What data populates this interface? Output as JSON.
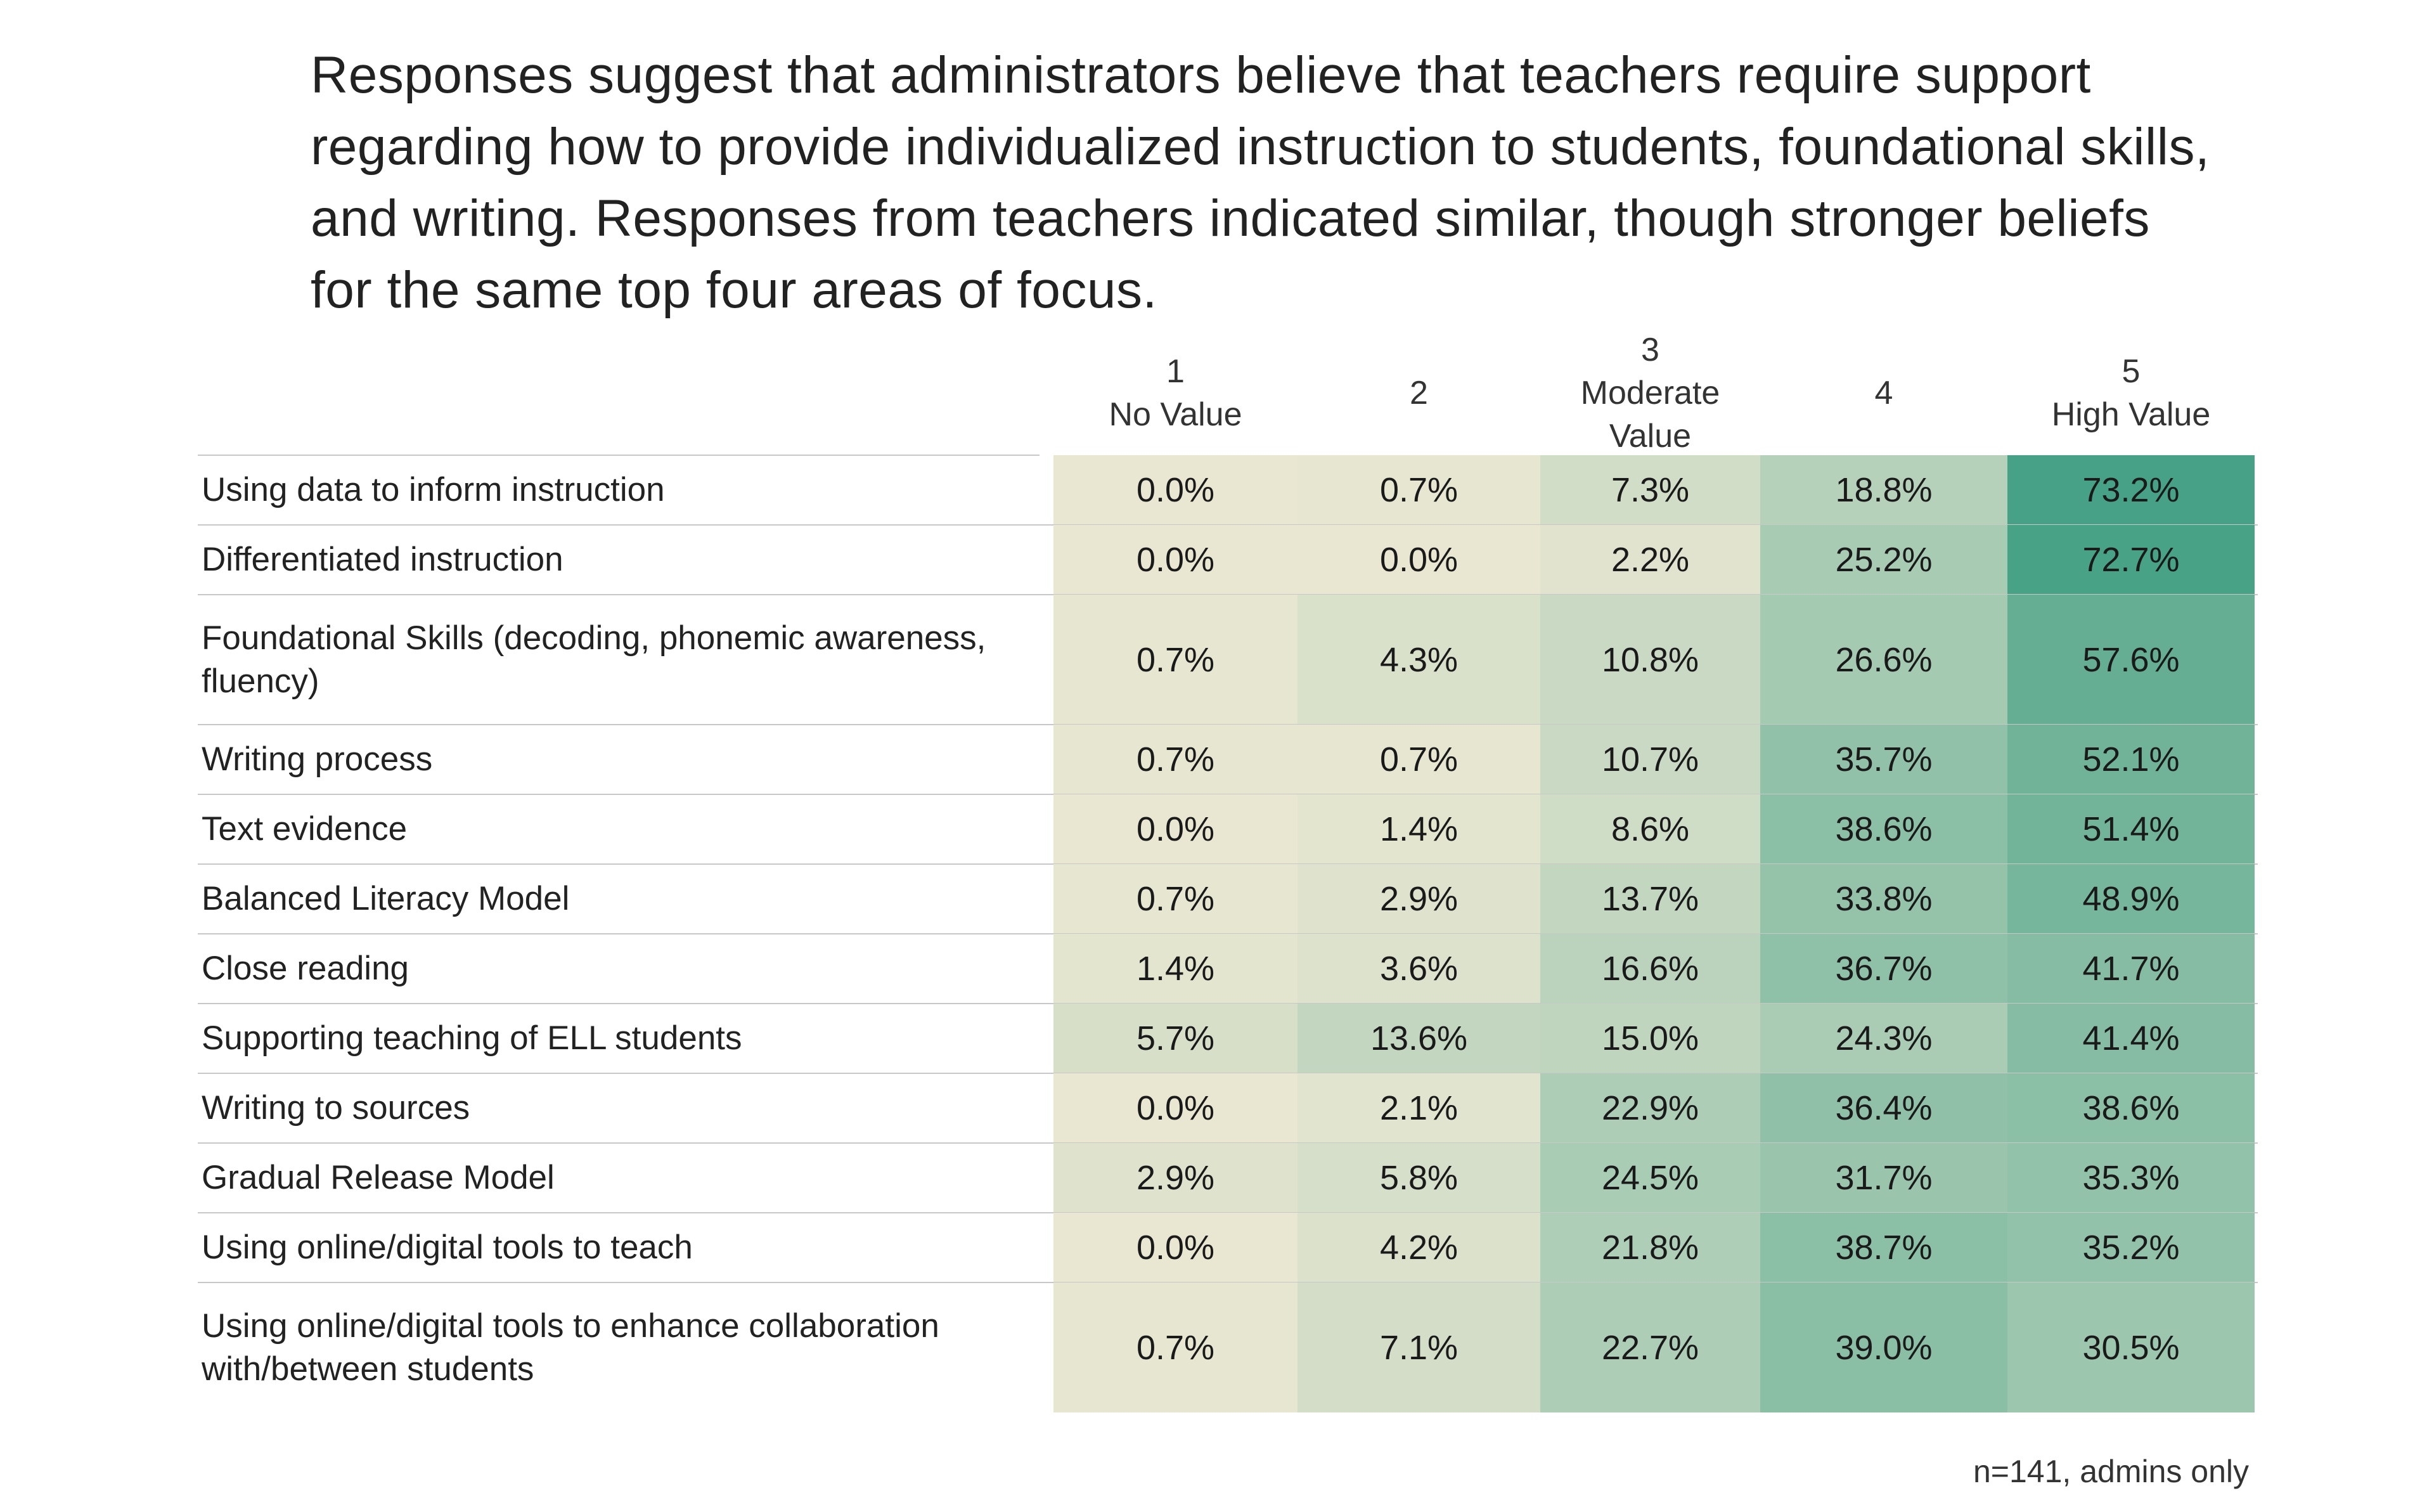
{
  "headline": "Responses suggest that administrators believe that teachers require support regarding how to provide individualized instruction to students, foundational skills, and writing. Responses from teachers indicated similar, though stronger beliefs for the same top four areas of focus.",
  "footnote": "n=141, admins only",
  "chart_data": {
    "type": "table",
    "columns": [
      {
        "num": "1",
        "label": "No Value"
      },
      {
        "num": "2",
        "label": ""
      },
      {
        "num": "3",
        "label": "Moderate Value"
      },
      {
        "num": "4",
        "label": ""
      },
      {
        "num": "5",
        "label": "High Value"
      }
    ],
    "rows": [
      {
        "label": "Using data to inform instruction",
        "values": [
          "0.0%",
          "0.7%",
          "7.3%",
          "18.8%",
          "73.2%"
        ]
      },
      {
        "label": "Differentiated instruction",
        "values": [
          "0.0%",
          "0.0%",
          "2.2%",
          "25.2%",
          "72.7%"
        ]
      },
      {
        "label": "Foundational Skills (decoding, phonemic awareness, fluency)",
        "values": [
          "0.7%",
          "4.3%",
          "10.8%",
          "26.6%",
          "57.6%"
        ]
      },
      {
        "label": "Writing process",
        "values": [
          "0.7%",
          "0.7%",
          "10.7%",
          "35.7%",
          "52.1%"
        ]
      },
      {
        "label": "Text evidence",
        "values": [
          "0.0%",
          "1.4%",
          "8.6%",
          "38.6%",
          "51.4%"
        ]
      },
      {
        "label": "Balanced Literacy Model",
        "values": [
          "0.7%",
          "2.9%",
          "13.7%",
          "33.8%",
          "48.9%"
        ]
      },
      {
        "label": "Close reading",
        "values": [
          "1.4%",
          "3.6%",
          "16.6%",
          "36.7%",
          "41.7%"
        ]
      },
      {
        "label": "Supporting teaching of ELL students",
        "values": [
          "5.7%",
          "13.6%",
          "15.0%",
          "24.3%",
          "41.4%"
        ]
      },
      {
        "label": "Writing to sources",
        "values": [
          "0.0%",
          "2.1%",
          "22.9%",
          "36.4%",
          "38.6%"
        ]
      },
      {
        "label": "Gradual Release Model",
        "values": [
          "2.9%",
          "5.8%",
          "24.5%",
          "31.7%",
          "35.3%"
        ]
      },
      {
        "label": "Using online/digital tools to teach",
        "values": [
          "0.0%",
          "4.2%",
          "21.8%",
          "38.7%",
          "35.2%"
        ]
      },
      {
        "label": "Using online/digital tools to enhance collaboration with/between students",
        "values": [
          "0.7%",
          "7.1%",
          "22.7%",
          "39.0%",
          "30.5%"
        ]
      }
    ],
    "color_scale": {
      "low": "#e9e7d2",
      "high": "#44a084"
    }
  }
}
